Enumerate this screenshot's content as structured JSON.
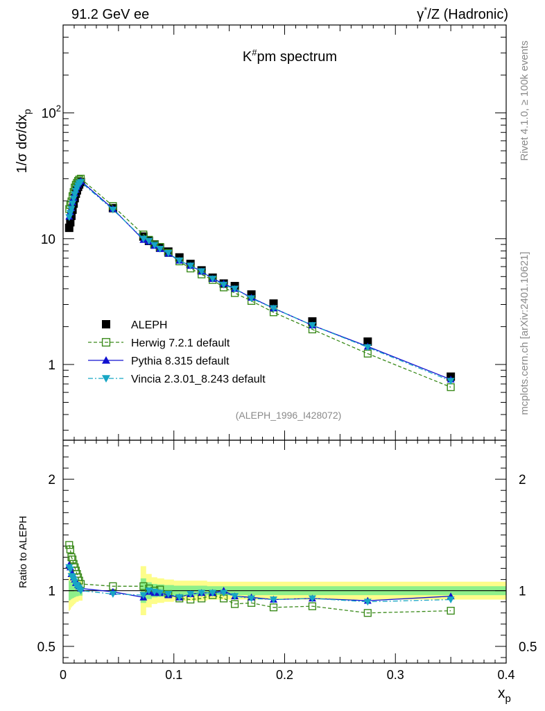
{
  "header": {
    "left": "91.2 GeV ee",
    "right_prefix": "γ",
    "right_sup": "*",
    "right_suffix": "/Z (Hadronic)"
  },
  "side_labels": {
    "rivet": "Rivet 4.1.0, ≥ 100k events",
    "mcplots": "mcplots.cern.ch [arXiv:2401.10621]"
  },
  "chart_data": {
    "type": "line",
    "title_prefix": "K",
    "title_sup": "#",
    "title_suffix": "pm spectrum",
    "analysis_tag": "(ALEPH_1996_I428072)",
    "ylabel_main": "1/σ  dσ/dx",
    "ylabel_main_sub": "p",
    "ylabel_ratio": "Ratio to ALEPH",
    "xlabel": "x",
    "xlabel_sub": "p",
    "xlim": [
      0,
      0.4
    ],
    "ylim_main": [
      0.25,
      500
    ],
    "ylim_ratio": [
      0.35,
      2.35
    ],
    "x_ticks": [
      "0",
      "0.1",
      "0.2",
      "0.3",
      "0.4"
    ],
    "y_ticks_main": [
      {
        "value": 1,
        "base": "1",
        "exp": ""
      },
      {
        "value": 10,
        "base": "10",
        "exp": ""
      },
      {
        "value": 100,
        "base": "10",
        "exp": "2"
      }
    ],
    "y_ticks_ratio": [
      {
        "value": 0.5,
        "label": "0.5"
      },
      {
        "value": 1,
        "label": "1"
      },
      {
        "value": 2,
        "label": "2"
      }
    ],
    "x": [
      0.0055,
      0.0065,
      0.0075,
      0.0085,
      0.0095,
      0.0105,
      0.0115,
      0.0125,
      0.0135,
      0.0145,
      0.016,
      0.045,
      0.0725,
      0.0775,
      0.0825,
      0.0875,
      0.095,
      0.105,
      0.115,
      0.125,
      0.135,
      0.145,
      0.155,
      0.17,
      0.19,
      0.225,
      0.275,
      0.35
    ],
    "series": [
      {
        "name": "ALEPH",
        "role": "data",
        "color": "#000000",
        "marker": "square-filled",
        "values": [
          12.2,
          13.5,
          15.2,
          17.0,
          19.0,
          21.0,
          22.8,
          24.2,
          25.8,
          27.0,
          28.2,
          17.5,
          10.4,
          9.6,
          9.0,
          8.5,
          7.9,
          7.1,
          6.3,
          5.6,
          4.9,
          4.4,
          4.2,
          3.6,
          3.05,
          2.2,
          1.52,
          0.8
        ]
      },
      {
        "name": "Herwig 7.2.1 default",
        "color": "#3a8a1a",
        "marker": "square-open",
        "dash": "5,3",
        "values": [
          17.2,
          18.5,
          19.8,
          21.8,
          23.5,
          25.5,
          26.8,
          27.8,
          28.8,
          29.5,
          30.0,
          18.2,
          10.8,
          9.8,
          9.0,
          8.6,
          7.7,
          6.6,
          5.8,
          5.2,
          4.7,
          4.1,
          3.7,
          3.2,
          2.6,
          1.9,
          1.22,
          0.66
        ]
      },
      {
        "name": "Pythia 8.315 default",
        "color": "#1010d0",
        "marker": "triangle-up",
        "dash": "",
        "values": [
          15.0,
          16.3,
          17.5,
          19.5,
          21.2,
          23.0,
          24.5,
          25.8,
          27.0,
          28.0,
          28.8,
          17.3,
          9.8,
          9.5,
          8.8,
          8.3,
          7.6,
          6.7,
          6.1,
          5.5,
          4.8,
          4.4,
          4.0,
          3.4,
          2.8,
          2.05,
          1.39,
          0.76
        ]
      },
      {
        "name": "Vincia 2.3.01_8.243 default",
        "color": "#17a6c4",
        "marker": "triangle-down",
        "dash": "7,3,2,3",
        "values": [
          14.8,
          16.0,
          17.2,
          19.0,
          20.8,
          22.5,
          24.0,
          25.3,
          26.5,
          27.5,
          28.2,
          17.0,
          10.0,
          9.6,
          8.9,
          8.3,
          7.7,
          6.7,
          6.1,
          5.5,
          4.8,
          4.3,
          4.0,
          3.35,
          2.8,
          2.05,
          1.37,
          0.74
        ]
      }
    ],
    "ratio_series": [
      {
        "name": "Herwig 7.2.1 default",
        "values": [
          1.41,
          1.37,
          1.3,
          1.28,
          1.24,
          1.21,
          1.18,
          1.15,
          1.12,
          1.09,
          1.06,
          1.04,
          1.04,
          1.02,
          1.0,
          1.01,
          0.97,
          0.93,
          0.92,
          0.93,
          0.96,
          0.93,
          0.88,
          0.89,
          0.85,
          0.86,
          0.8,
          0.82
        ]
      },
      {
        "name": "Pythia 8.315 default",
        "values": [
          1.23,
          1.21,
          1.15,
          1.15,
          1.12,
          1.1,
          1.07,
          1.07,
          1.05,
          1.04,
          1.02,
          0.99,
          0.94,
          0.99,
          0.98,
          0.98,
          0.96,
          0.94,
          0.97,
          0.98,
          0.98,
          1.0,
          0.95,
          0.94,
          0.92,
          0.93,
          0.91,
          0.95
        ]
      },
      {
        "name": "Vincia 2.3.01_8.243 default",
        "values": [
          1.21,
          1.19,
          1.13,
          1.12,
          1.1,
          1.08,
          1.05,
          1.05,
          1.03,
          1.02,
          1.0,
          0.97,
          0.96,
          1.0,
          0.99,
          0.98,
          0.97,
          0.94,
          0.97,
          0.98,
          0.98,
          0.98,
          0.95,
          0.93,
          0.92,
          0.93,
          0.9,
          0.92
        ]
      }
    ],
    "band_2sigma_halfwidth": [
      0.18,
      0.17,
      0.15,
      0.14,
      0.13,
      0.12,
      0.11,
      0.1,
      0.1,
      0.09,
      0.09,
      0.08,
      0.22,
      0.15,
      0.12,
      0.11,
      0.1,
      0.09,
      0.09,
      0.09,
      0.08,
      0.08,
      0.08,
      0.08,
      0.08,
      0.08,
      0.08,
      0.08
    ],
    "band_1sigma_halfwidth": [
      0.09,
      0.085,
      0.075,
      0.07,
      0.065,
      0.06,
      0.055,
      0.05,
      0.05,
      0.045,
      0.045,
      0.04,
      0.11,
      0.075,
      0.06,
      0.055,
      0.05,
      0.045,
      0.045,
      0.045,
      0.04,
      0.04,
      0.04,
      0.04,
      0.04,
      0.04,
      0.04,
      0.04
    ],
    "band_colors": {
      "inner": "#8ef08a",
      "outer": "#fdfd8a"
    },
    "legend_position": "lower-left"
  }
}
